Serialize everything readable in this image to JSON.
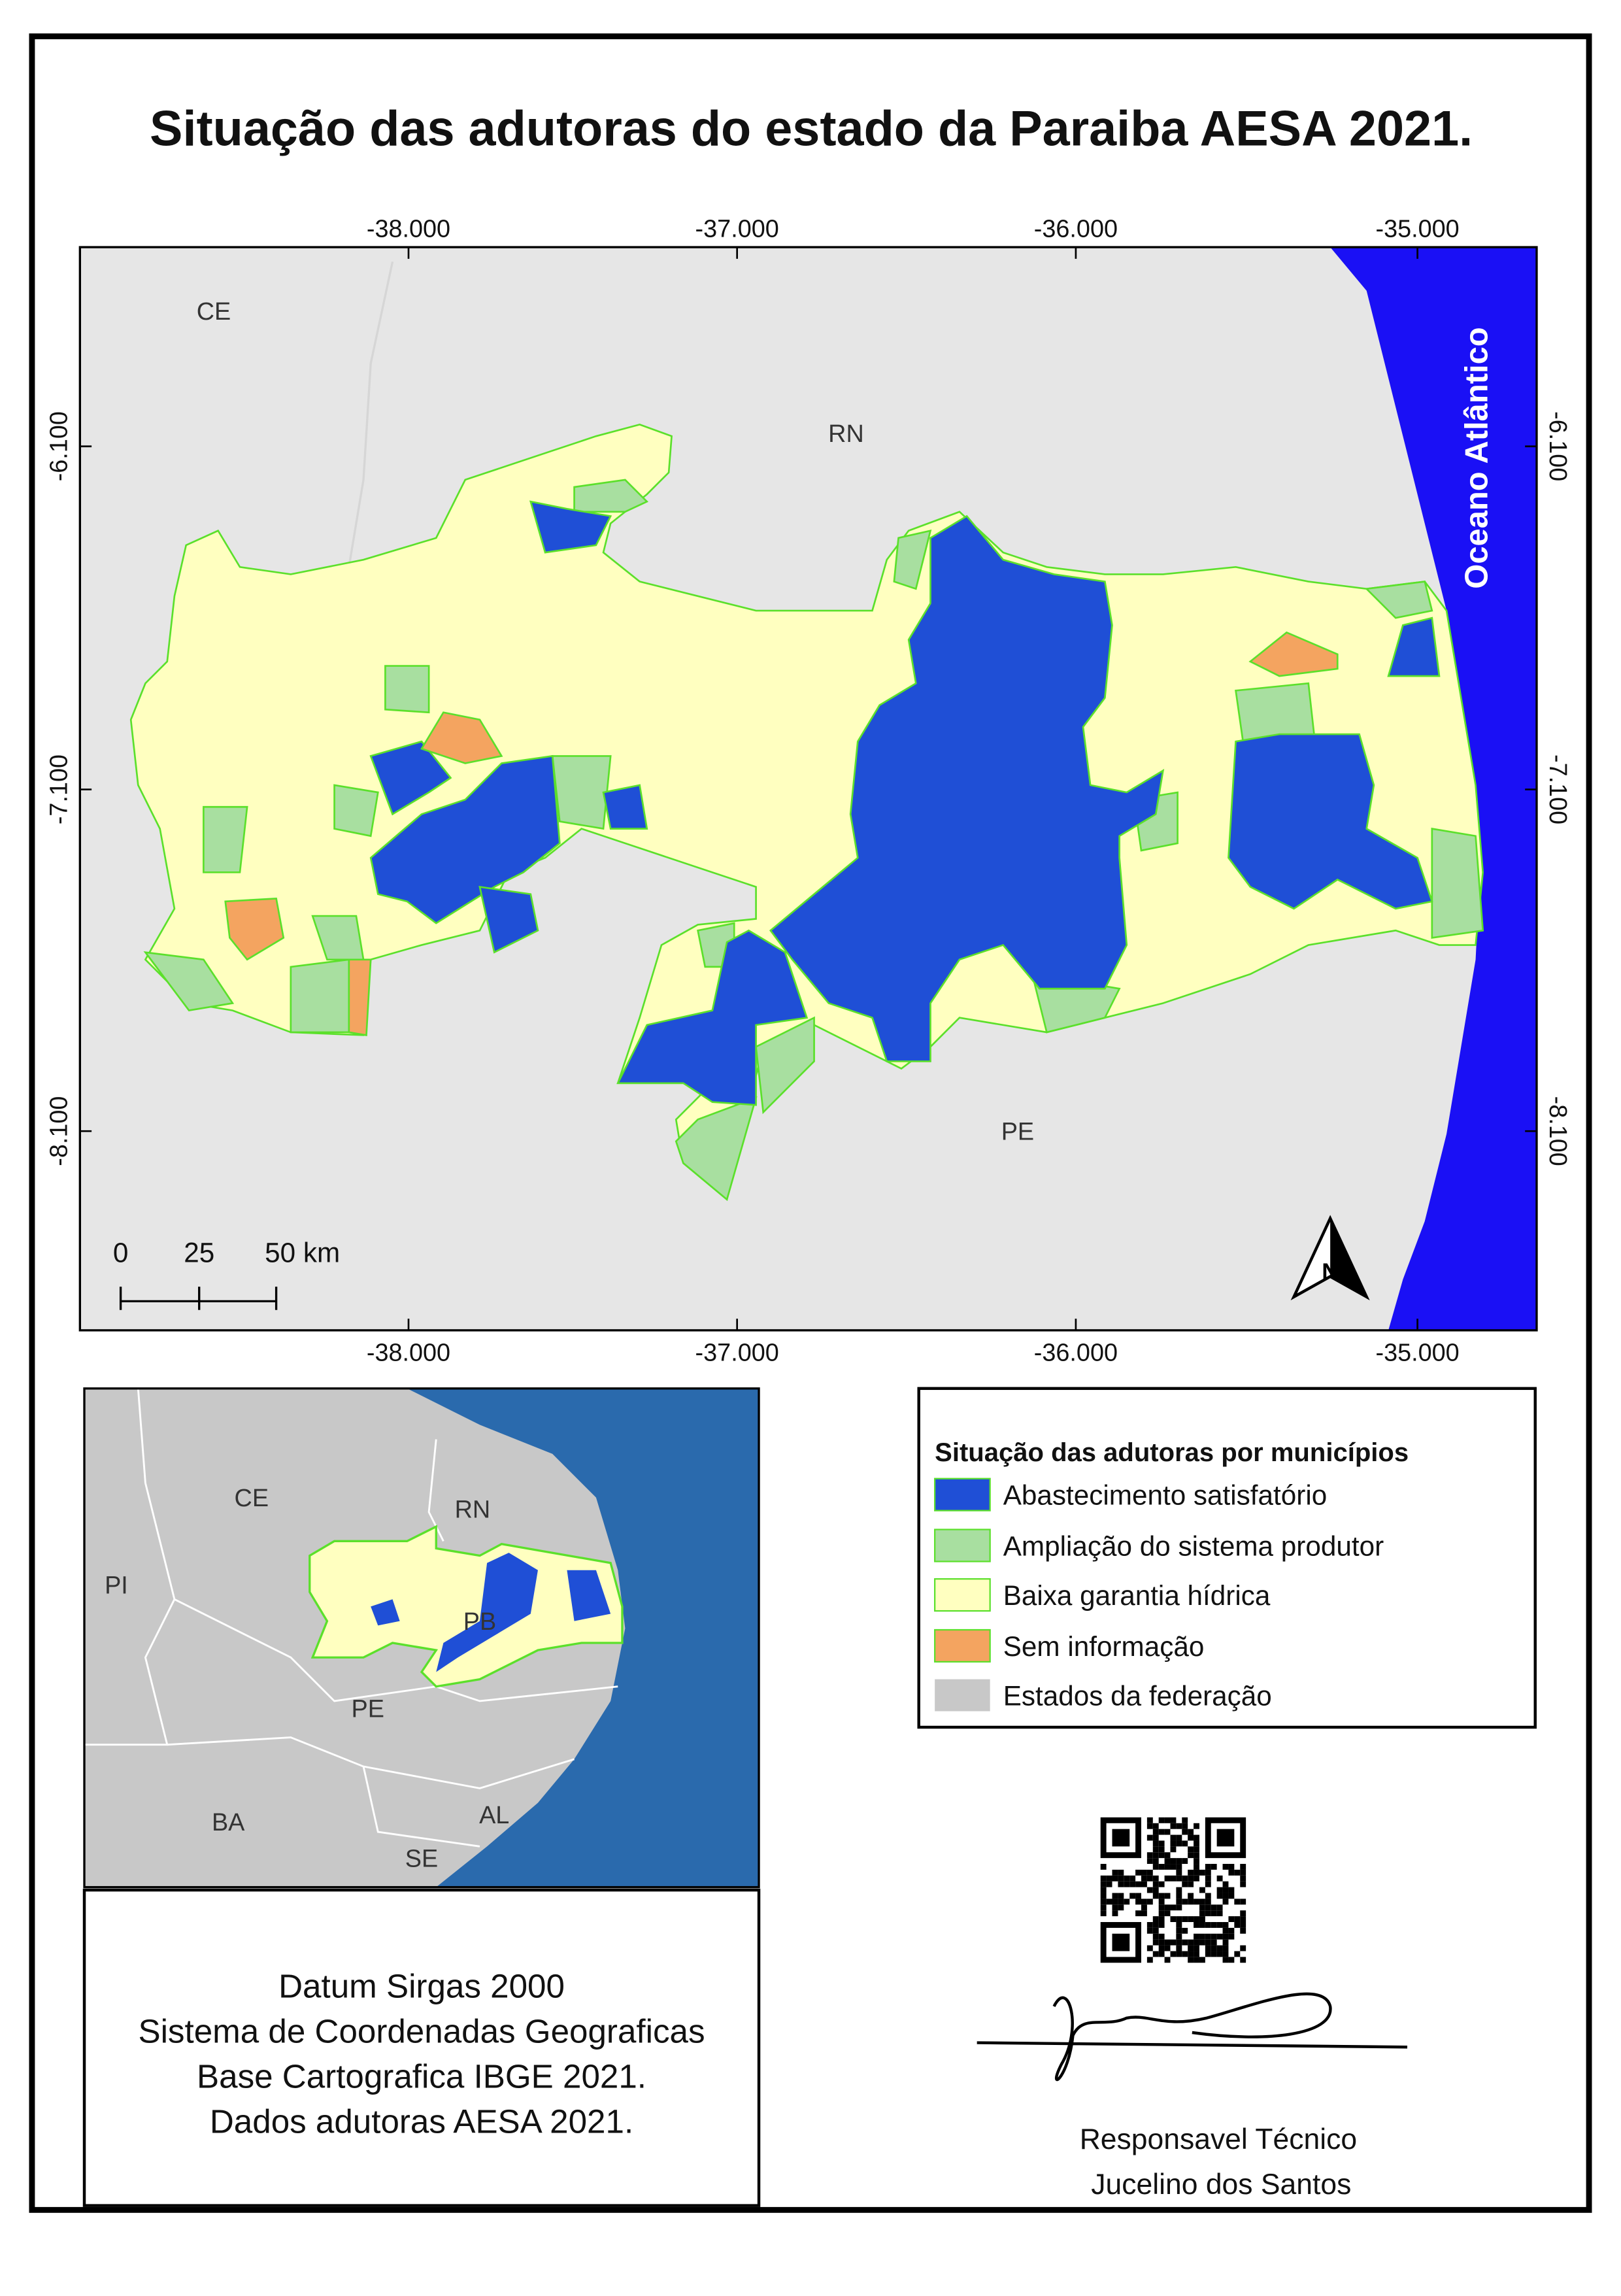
{
  "title": "Situação das adutoras do estado da Paraiba AESA 2021.",
  "map": {
    "lon_ticks": [
      "-38.000",
      "-37.000",
      "-36.000",
      "-35.000"
    ],
    "lat_ticks": [
      "-6.100",
      "-7.100",
      "-8.100"
    ],
    "labels": [
      "CE",
      "RN",
      "PE",
      "Oceano Atlântico"
    ],
    "scale_bar": [
      "0",
      "25",
      "50 km"
    ]
  },
  "inset": {
    "labels": [
      "CE",
      "RN",
      "PI",
      "PB",
      "PE",
      "BA",
      "AL",
      "SE"
    ]
  },
  "legend": {
    "title": "Situação das adutoras por municípios",
    "items": [
      "Abastecimento satisfatório",
      "Ampliação do sistema produtor",
      "Baixa garantia hídrica",
      "Sem informação",
      "Estados da federação"
    ]
  },
  "notes": [
    "Datum Sirgas 2000",
    "Sistema de Coordenadas Geograficas",
    "Base Cartografica IBGE 2021.",
    "Dados adutoras AESA 2021."
  ],
  "responsible": [
    "Responsavel Técnico",
    "Jucelino dos Santos"
  ]
}
